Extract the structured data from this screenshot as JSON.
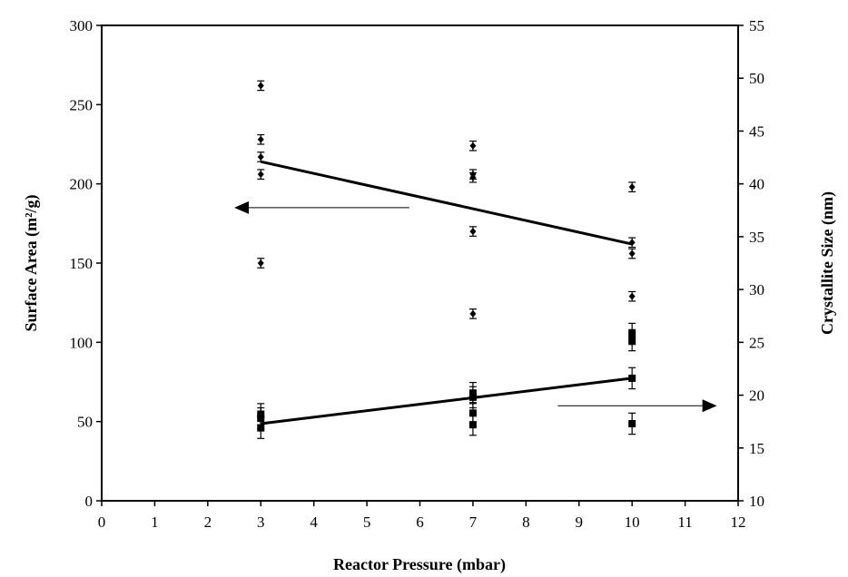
{
  "chart_data": {
    "type": "scatter",
    "title": "",
    "xlabel": "Reactor Pressure (mbar)",
    "ylabel_left": "Surface Area (m²/g)",
    "ylabel_right": "Crystallite Size (nm)",
    "xlim": [
      0,
      12
    ],
    "ylim_left": [
      0,
      300
    ],
    "ylim_right": [
      10,
      55
    ],
    "x_ticks": [
      "0",
      "1",
      "2",
      "3",
      "4",
      "5",
      "6",
      "7",
      "8",
      "9",
      "10",
      "11",
      "12"
    ],
    "y_left_ticks": [
      "0",
      "50",
      "100",
      "150",
      "200",
      "250",
      "300"
    ],
    "y_right_ticks": [
      "10",
      "15",
      "20",
      "25",
      "30",
      "35",
      "40",
      "45",
      "50",
      "55"
    ],
    "grid": false,
    "legend": "none",
    "series": [
      {
        "axis": "left",
        "marker": "diamond",
        "error_bar": 3,
        "points": [
          {
            "x": 3,
            "y": 262
          },
          {
            "x": 3,
            "y": 228
          },
          {
            "x": 3,
            "y": 217
          },
          {
            "x": 3,
            "y": 206
          },
          {
            "x": 3,
            "y": 150
          },
          {
            "x": 7,
            "y": 224
          },
          {
            "x": 7,
            "y": 206
          },
          {
            "x": 7,
            "y": 204
          },
          {
            "x": 7,
            "y": 170
          },
          {
            "x": 7,
            "y": 118
          },
          {
            "x": 10,
            "y": 198
          },
          {
            "x": 10,
            "y": 163
          },
          {
            "x": 10,
            "y": 156
          },
          {
            "x": 10,
            "y": 129
          }
        ],
        "fit": [
          {
            "x": 3,
            "y": 214
          },
          {
            "x": 10,
            "y": 162
          }
        ]
      },
      {
        "axis": "right",
        "marker": "square",
        "error_bar": 1.0,
        "points": [
          {
            "x": 3,
            "y": 18.2
          },
          {
            "x": 3,
            "y": 17.8
          },
          {
            "x": 3,
            "y": 16.9
          },
          {
            "x": 7,
            "y": 20.2
          },
          {
            "x": 7,
            "y": 19.8
          },
          {
            "x": 7,
            "y": 18.3
          },
          {
            "x": 7,
            "y": 17.2
          },
          {
            "x": 10,
            "y": 25.8
          },
          {
            "x": 10,
            "y": 25.2
          },
          {
            "x": 10,
            "y": 21.6
          },
          {
            "x": 10,
            "y": 17.3
          }
        ],
        "fit": [
          {
            "x": 3,
            "y": 17.3
          },
          {
            "x": 10,
            "y": 21.6
          }
        ]
      }
    ],
    "annotations": [
      {
        "type": "arrow",
        "points_to": "left-axis",
        "from": {
          "x": 5.8,
          "y": 185
        },
        "to": {
          "x": 2.5,
          "y": 185
        }
      },
      {
        "type": "arrow",
        "points_to": "right-axis",
        "from": {
          "x": 8.6,
          "y": 60
        },
        "to": {
          "x": 11.6,
          "y": 60
        }
      }
    ]
  }
}
